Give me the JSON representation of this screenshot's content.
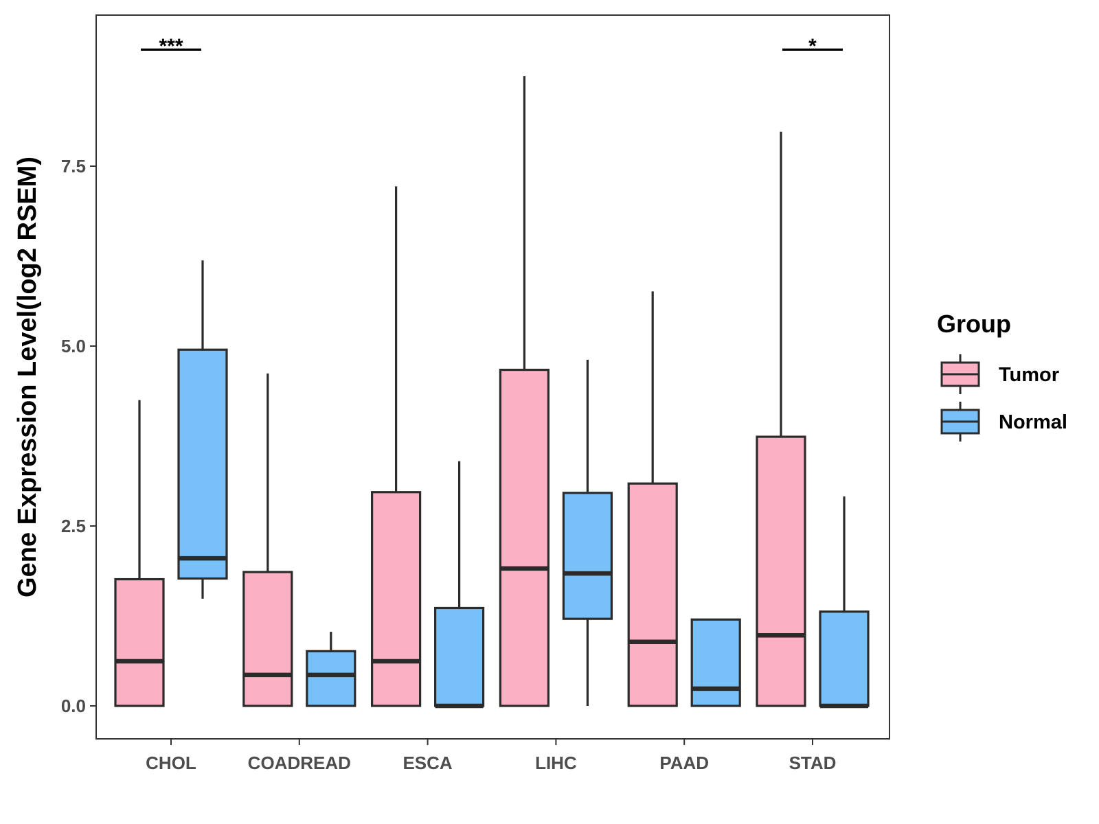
{
  "chart_data": {
    "type": "boxplot",
    "title": "",
    "xlabel": "",
    "ylabel": "Gene Expression Level(log2 RSEM)",
    "ylim": [
      -0.45,
      9.6
    ],
    "yticks": [
      0.0,
      2.5,
      5.0,
      7.5
    ],
    "ytick_labels": [
      "0.0",
      "2.5",
      "5.0",
      "7.5"
    ],
    "categories": [
      "CHOL",
      "COADREAD",
      "ESCA",
      "LIHC",
      "PAAD",
      "STAD"
    ],
    "legend": {
      "title": "Group",
      "position": "right",
      "entries": [
        {
          "name": "Tumor",
          "color": "#fbb0c3"
        },
        {
          "name": "Normal",
          "color": "#78c1f8"
        }
      ]
    },
    "series": [
      {
        "name": "Tumor",
        "color": "#fbb0c3",
        "boxes": [
          {
            "category": "CHOL",
            "whisker_low": 0.0,
            "q1": 0.0,
            "median": 0.62,
            "q3": 1.76,
            "whisker_high": 4.25
          },
          {
            "category": "COADREAD",
            "whisker_low": 0.0,
            "q1": 0.0,
            "median": 0.43,
            "q3": 1.86,
            "whisker_high": 4.62
          },
          {
            "category": "ESCA",
            "whisker_low": 0.0,
            "q1": 0.0,
            "median": 0.62,
            "q3": 2.97,
            "whisker_high": 7.22
          },
          {
            "category": "LIHC",
            "whisker_low": 0.0,
            "q1": 0.0,
            "median": 1.91,
            "q3": 4.67,
            "whisker_high": 8.75
          },
          {
            "category": "PAAD",
            "whisker_low": 0.0,
            "q1": 0.0,
            "median": 0.89,
            "q3": 3.09,
            "whisker_high": 5.76
          },
          {
            "category": "STAD",
            "whisker_low": 0.0,
            "q1": 0.0,
            "median": 0.98,
            "q3": 3.74,
            "whisker_high": 7.98
          }
        ]
      },
      {
        "name": "Normal",
        "color": "#78c1f8",
        "boxes": [
          {
            "category": "CHOL",
            "whisker_low": 1.49,
            "q1": 1.77,
            "median": 2.05,
            "q3": 4.95,
            "whisker_high": 6.19
          },
          {
            "category": "COADREAD",
            "whisker_low": 0.0,
            "q1": 0.0,
            "median": 0.43,
            "q3": 0.76,
            "whisker_high": 1.03
          },
          {
            "category": "ESCA",
            "whisker_low": 0.0,
            "q1": 0.0,
            "median": 0.0,
            "q3": 1.36,
            "whisker_high": 3.4
          },
          {
            "category": "LIHC",
            "whisker_low": 0.0,
            "q1": 1.21,
            "median": 1.84,
            "q3": 2.96,
            "whisker_high": 4.81
          },
          {
            "category": "PAAD",
            "whisker_low": 0.0,
            "q1": 0.0,
            "median": 0.24,
            "q3": 1.2,
            "whisker_high": 1.2
          },
          {
            "category": "STAD",
            "whisker_low": 0.0,
            "q1": 0.0,
            "median": 0.0,
            "q3": 1.31,
            "whisker_high": 2.91
          }
        ]
      }
    ],
    "annotations": [
      {
        "category": "CHOL",
        "label": "***",
        "y": 9.12
      },
      {
        "category": "STAD",
        "label": "*",
        "y": 9.12
      }
    ],
    "grid": false
  }
}
